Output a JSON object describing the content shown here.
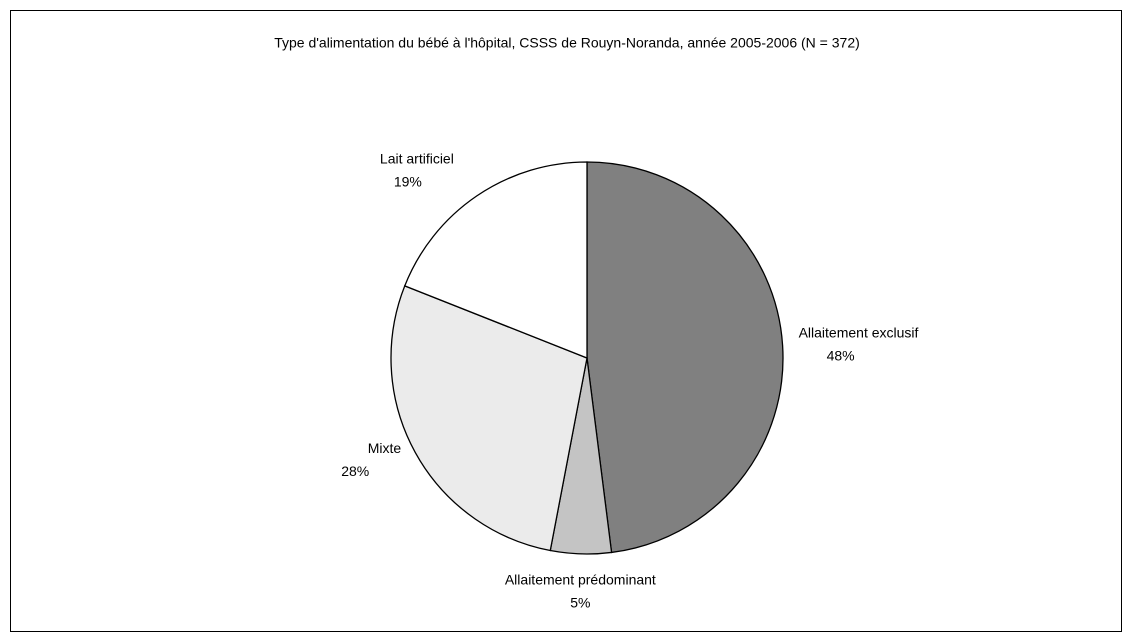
{
  "chart_data": {
    "type": "pie",
    "title": "Type d'alimentation du bébé à l'hôpital, CSSS de Rouyn-Noranda, année 2005-2006  (N = 372)",
    "categories": [
      "Allaitement exclusif",
      "Allaitement prédominant",
      "Mixte",
      "Lait artificiel"
    ],
    "values": [
      48,
      5,
      28,
      19
    ],
    "value_labels": [
      "48%",
      "5%",
      "28%",
      "19%"
    ],
    "colors": [
      "#808080",
      "#c4c4c4",
      "#ebebeb",
      "#ffffff"
    ]
  }
}
